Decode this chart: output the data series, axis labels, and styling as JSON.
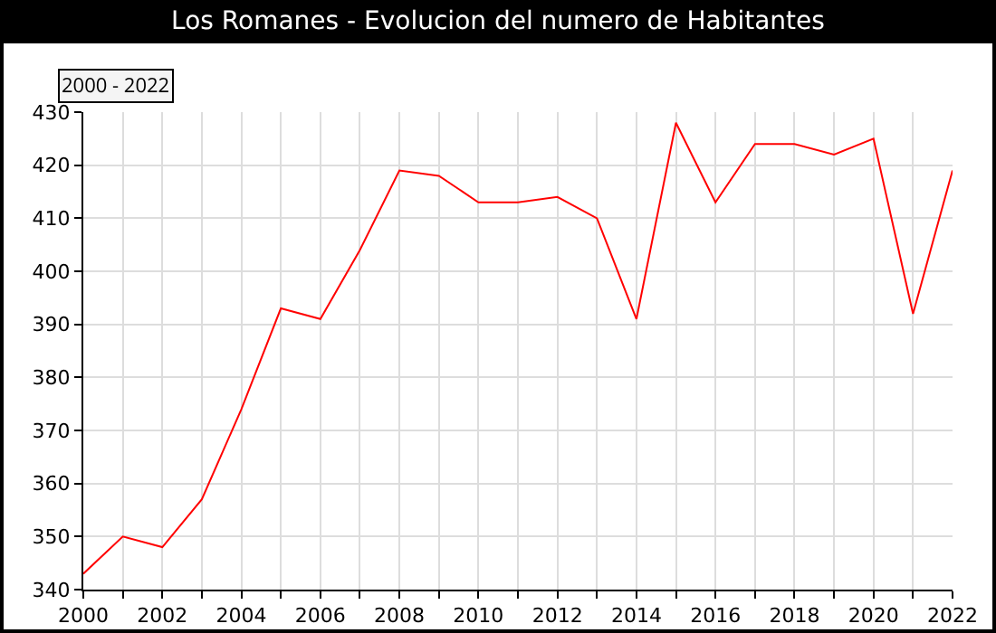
{
  "chart_data": {
    "type": "line",
    "title": "Los Romanes - Evolucion del numero de Habitantes",
    "annotations": [
      "2000 - 2022"
    ],
    "x": [
      2000,
      2001,
      2002,
      2003,
      2004,
      2005,
      2006,
      2007,
      2008,
      2009,
      2010,
      2011,
      2012,
      2013,
      2014,
      2015,
      2016,
      2017,
      2018,
      2019,
      2020,
      2021,
      2022
    ],
    "series": [
      {
        "color": "#ff0000",
        "values": [
          343,
          350,
          348,
          357,
          374,
          393,
          391,
          404,
          419,
          418,
          413,
          413,
          414,
          410,
          391,
          428,
          413,
          424,
          424,
          422,
          425,
          392,
          419
        ]
      }
    ],
    "xlim": [
      2000,
      2022
    ],
    "xticks": [
      2000,
      {
        "value": 2001,
        "label": null
      },
      2002,
      {
        "value": 2003,
        "label": null
      },
      2004,
      {
        "value": 2005,
        "label": null
      },
      2006,
      {
        "value": 2007,
        "label": null
      },
      2008,
      {
        "value": 2009,
        "label": null
      },
      2010,
      {
        "value": 2011,
        "label": null
      },
      2012,
      {
        "value": 2013,
        "label": null
      },
      2014,
      {
        "value": 2015,
        "label": null
      },
      2016,
      {
        "value": 2017,
        "label": null
      },
      2018,
      {
        "value": 2019,
        "label": null
      },
      2020,
      {
        "value": 2021,
        "label": null
      },
      2022
    ],
    "ylim": [
      340,
      430
    ],
    "yticks": [
      340,
      350,
      360,
      370,
      380,
      390,
      400,
      410,
      420,
      430
    ],
    "grid": true,
    "legend": false,
    "marker": "none",
    "line_style": "solid"
  }
}
